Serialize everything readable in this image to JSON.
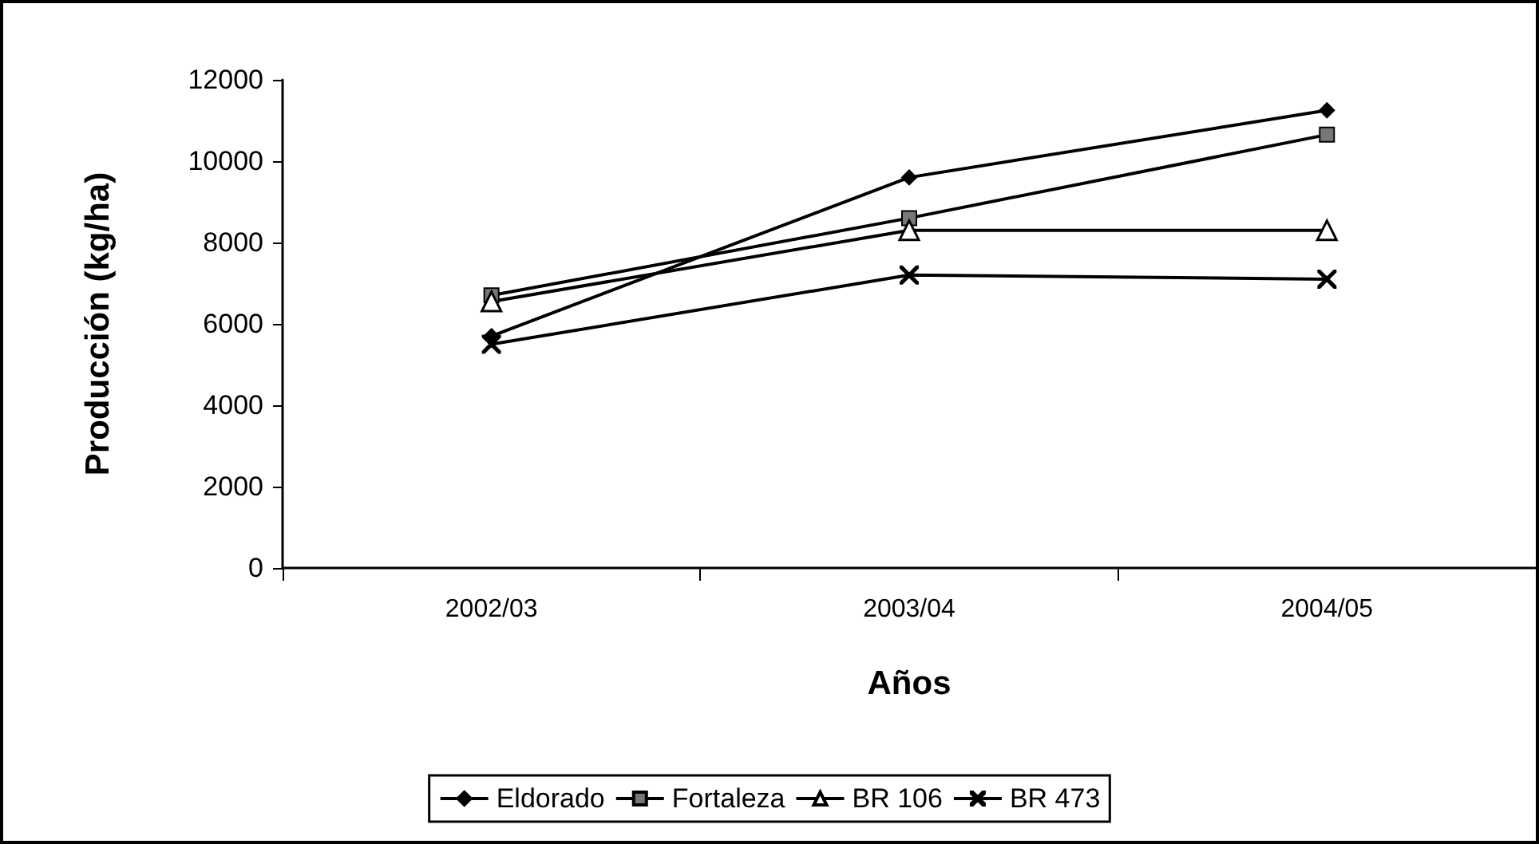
{
  "chart_data": {
    "type": "line",
    "xlabel": "Años",
    "ylabel": "Producción (kg/ha)",
    "categories": [
      "2002/03",
      "2003/04",
      "2004/05"
    ],
    "series": [
      {
        "name": "Eldorado",
        "color": "#000000",
        "marker": "diamond",
        "values": [
          5700,
          9600,
          11250
        ]
      },
      {
        "name": "Fortaleza",
        "color": "#000000",
        "marker": "square",
        "values": [
          6700,
          8600,
          10650
        ]
      },
      {
        "name": "BR 106",
        "color": "#000000",
        "marker": "triangle",
        "values": [
          6550,
          8300,
          8300
        ]
      },
      {
        "name": "BR 473",
        "color": "#000000",
        "marker": "cross",
        "values": [
          5500,
          7200,
          7100
        ]
      }
    ],
    "ylim": [
      0,
      12000
    ],
    "yticks": [
      0,
      2000,
      4000,
      6000,
      8000,
      10000,
      12000
    ],
    "grid": false,
    "legend": "bottom",
    "line_style": "solid"
  }
}
